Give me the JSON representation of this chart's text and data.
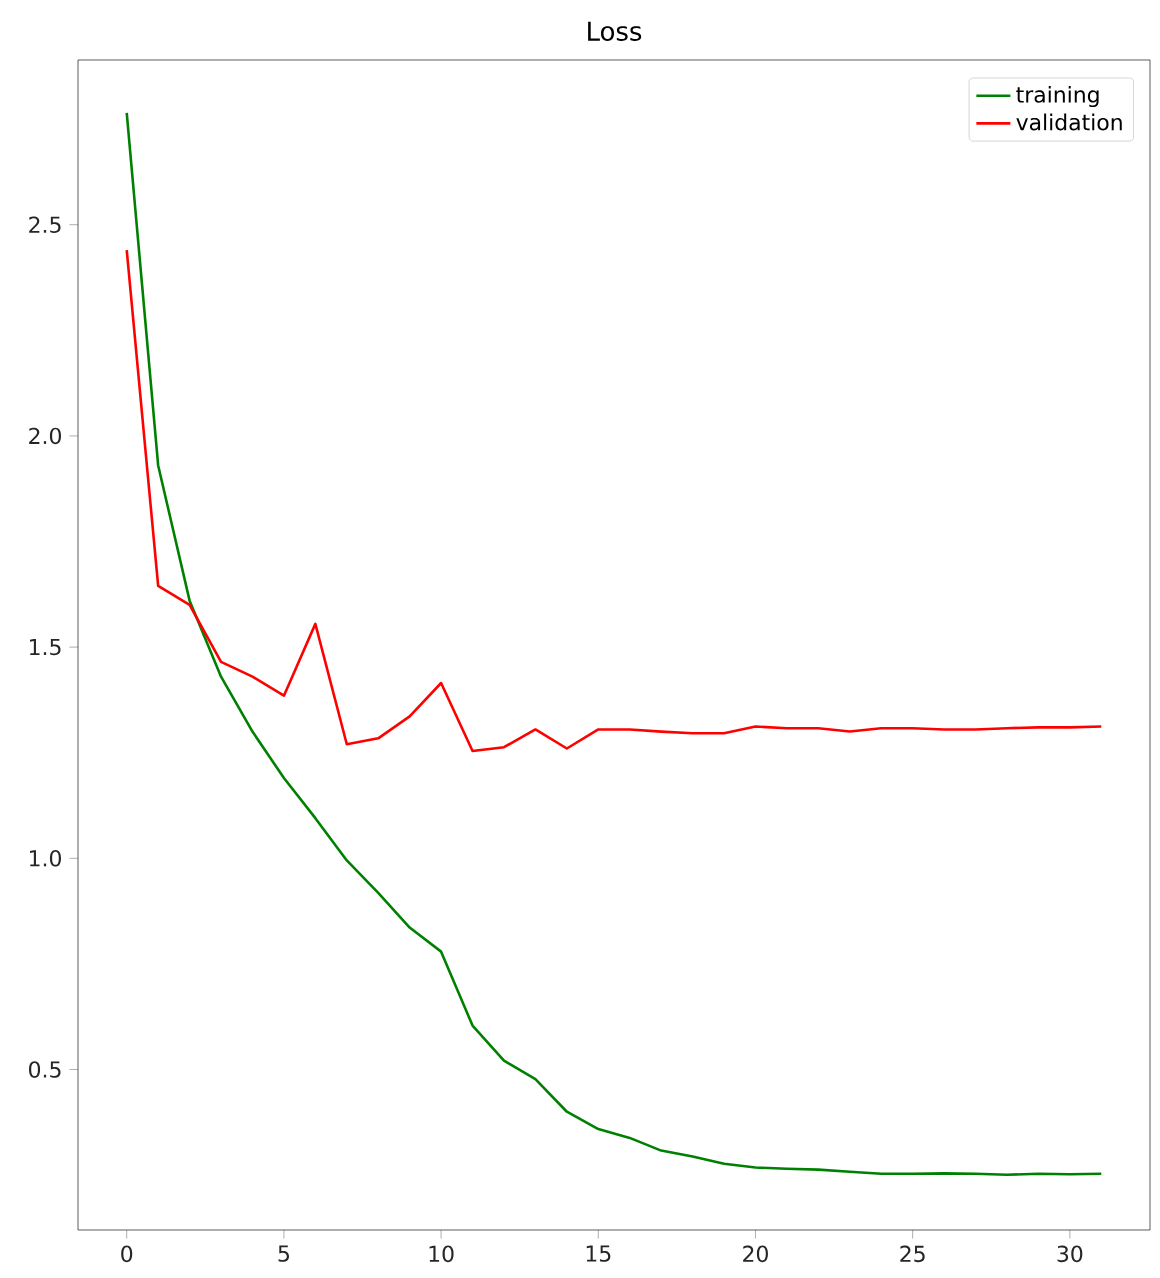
{
  "chart_data": {
    "type": "line",
    "title": "Loss",
    "x": [
      0,
      1,
      2,
      3,
      4,
      5,
      6,
      7,
      8,
      9,
      10,
      11,
      12,
      13,
      14,
      15,
      16,
      17,
      18,
      19,
      20,
      21,
      22,
      23,
      24,
      25,
      26,
      27,
      28,
      29,
      30,
      31
    ],
    "series": [
      {
        "name": "training",
        "color": "#008000",
        "values": [
          2.765,
          1.93,
          1.61,
          1.43,
          1.3,
          1.19,
          1.095,
          0.995,
          0.918,
          0.836,
          0.779,
          0.604,
          0.521,
          0.477,
          0.4,
          0.359,
          0.338,
          0.308,
          0.294,
          0.277,
          0.268,
          0.265,
          0.263,
          0.258,
          0.253,
          0.253,
          0.254,
          0.253,
          0.251,
          0.253,
          0.252,
          0.253
        ]
      },
      {
        "name": "validation",
        "color": "#ff0000",
        "values": [
          2.44,
          1.645,
          1.6,
          1.465,
          1.43,
          1.385,
          1.555,
          1.27,
          1.284,
          1.336,
          1.415,
          1.254,
          1.263,
          1.305,
          1.26,
          1.305,
          1.305,
          1.3,
          1.296,
          1.296,
          1.312,
          1.308,
          1.308,
          1.3,
          1.308,
          1.308,
          1.305,
          1.305,
          1.308,
          1.31,
          1.31,
          1.312
        ]
      }
    ],
    "xlim": [
      -1.55,
      32.55
    ],
    "ylim": [
      0.12,
      2.89
    ],
    "xticks": [
      0,
      5,
      10,
      15,
      20,
      25,
      30
    ],
    "yticks": [
      0.5,
      {
        "value": 1.0,
        "label": "1.0"
      },
      1.5,
      {
        "value": 2.0,
        "label": "2.0"
      },
      2.5
    ],
    "legend": "top right",
    "grid": false,
    "line_style": "solid",
    "marker": "none"
  }
}
